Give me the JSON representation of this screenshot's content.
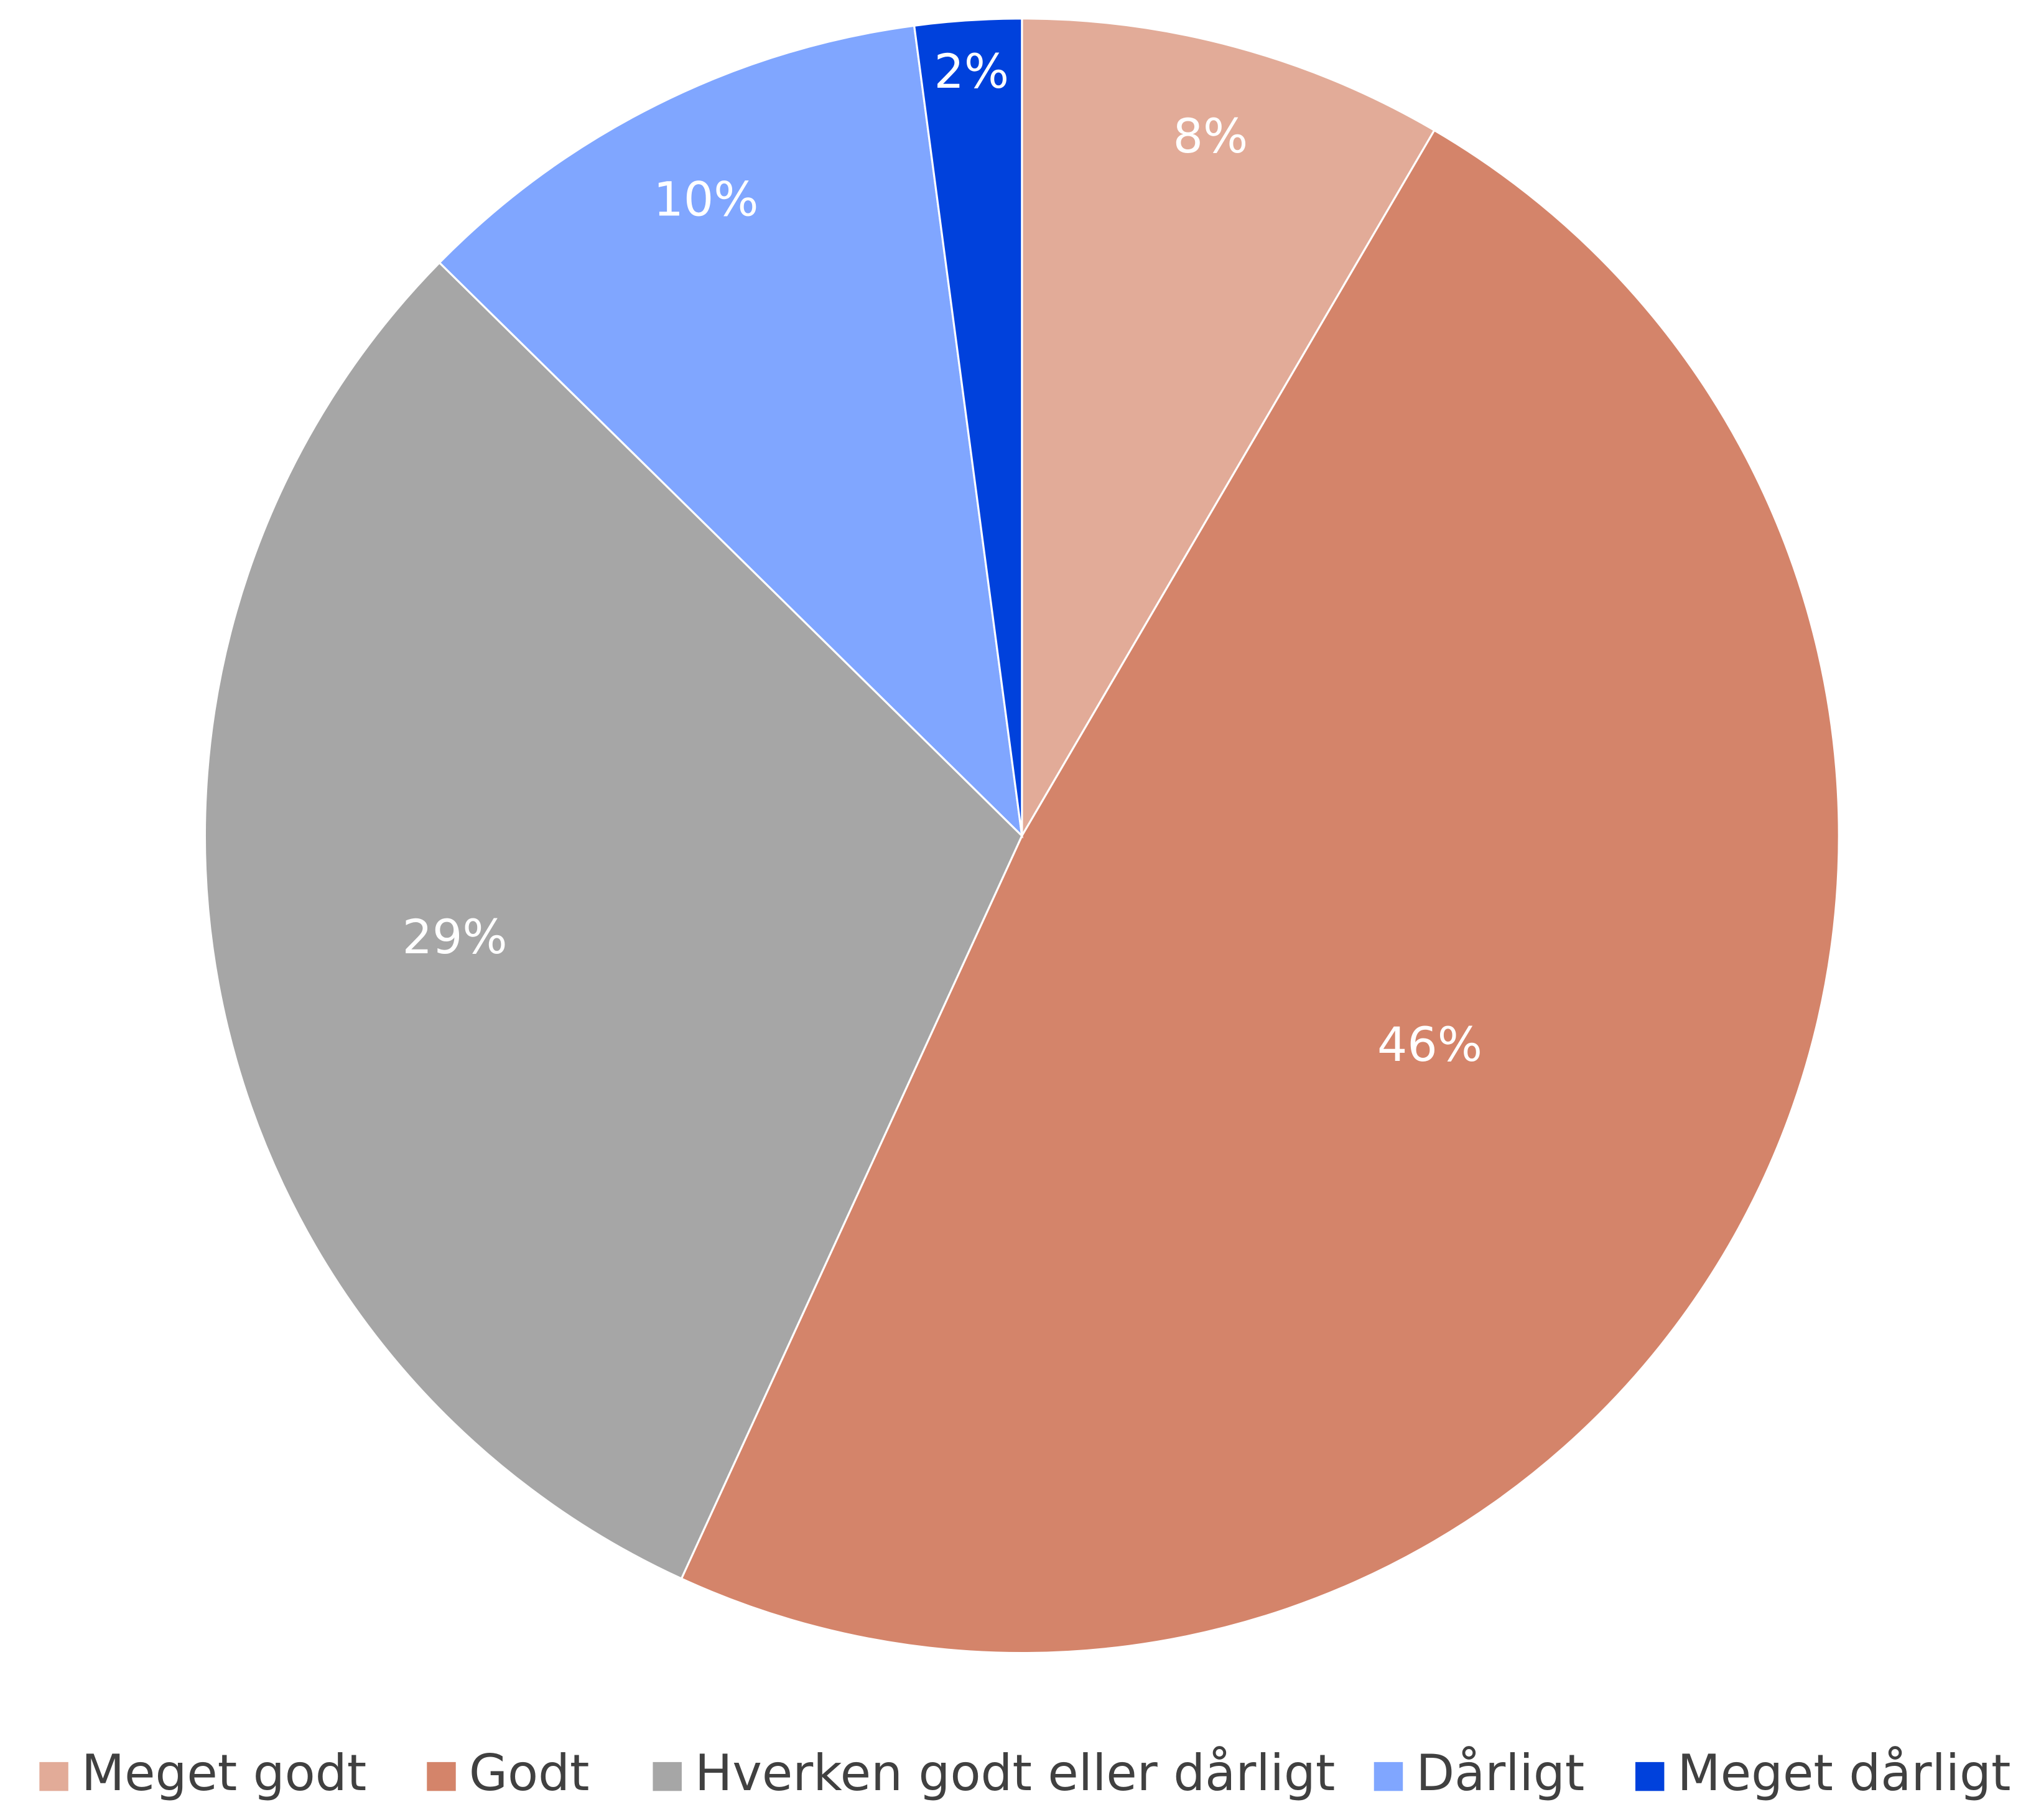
{
  "chart_data": {
    "type": "pie",
    "categories": [
      "Meget godt",
      "Godt",
      "Hverken godt eller dårligt",
      "Dårligt",
      "Meget dårligt"
    ],
    "values": [
      8,
      46,
      29,
      10,
      2
    ],
    "value_labels": [
      "8%",
      "46%",
      "29%",
      "10%",
      "2%"
    ],
    "colors": [
      "#e2ab98",
      "#d4846a",
      "#a6a6a6",
      "#80a6ff",
      "#0041dc"
    ],
    "legend": "bottom"
  }
}
